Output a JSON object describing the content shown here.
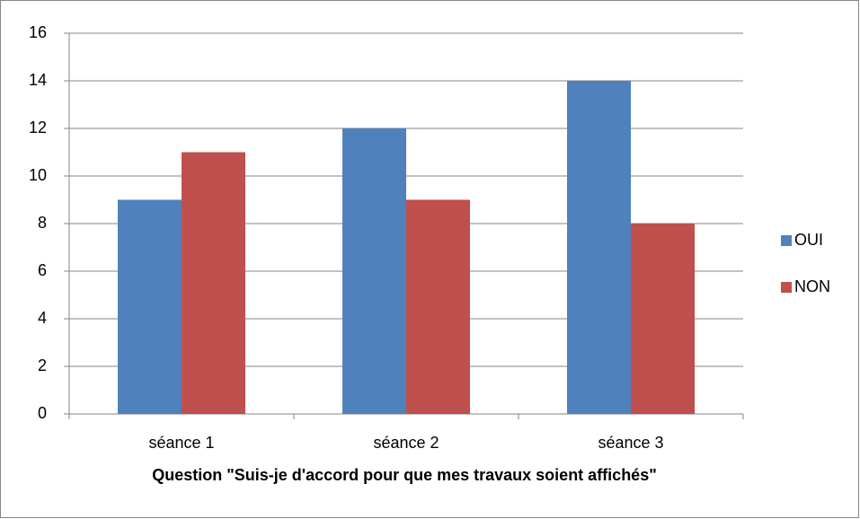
{
  "chart_data": {
    "type": "bar",
    "x_label": "Question \"Suis-je d'accord pour que mes travaux soient affichés\"",
    "categories": [
      "séance 1",
      "séance 2",
      "séance 3"
    ],
    "series": [
      {
        "name": "OUI",
        "color": "#4f81bd",
        "values": [
          9,
          12,
          14
        ]
      },
      {
        "name": "NON",
        "color": "#c0504d",
        "values": [
          11,
          9,
          8
        ]
      }
    ],
    "ylim": [
      0,
      16
    ],
    "yticks": [
      0,
      2,
      4,
      6,
      8,
      10,
      12,
      14,
      16
    ],
    "grid": true,
    "legend": "right"
  }
}
